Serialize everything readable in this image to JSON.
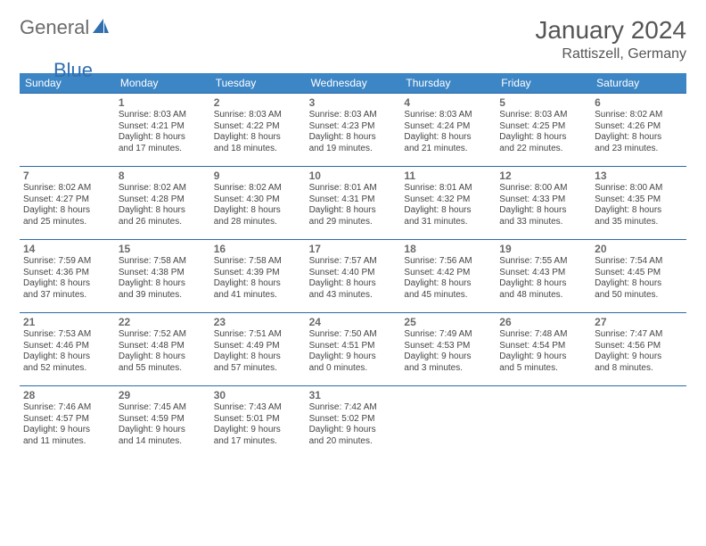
{
  "logo": {
    "general": "General",
    "blue": "Blue"
  },
  "title": "January 2024",
  "location": "Rattiszell, Germany",
  "colors": {
    "header_bg": "#3d86c6",
    "header_text": "#ffffff",
    "row_border": "#2b6aa8",
    "text": "#444444",
    "daynum": "#6a6a6a",
    "title_text": "#555555",
    "logo_blue": "#2f6fb0",
    "logo_gray": "#6b6b6b"
  },
  "dow": [
    "Sunday",
    "Monday",
    "Tuesday",
    "Wednesday",
    "Thursday",
    "Friday",
    "Saturday"
  ],
  "leading_blanks": 1,
  "trailing_blanks": 3,
  "days": [
    {
      "n": "1",
      "sunrise": "Sunrise: 8:03 AM",
      "sunset": "Sunset: 4:21 PM",
      "d1": "Daylight: 8 hours",
      "d2": "and 17 minutes."
    },
    {
      "n": "2",
      "sunrise": "Sunrise: 8:03 AM",
      "sunset": "Sunset: 4:22 PM",
      "d1": "Daylight: 8 hours",
      "d2": "and 18 minutes."
    },
    {
      "n": "3",
      "sunrise": "Sunrise: 8:03 AM",
      "sunset": "Sunset: 4:23 PM",
      "d1": "Daylight: 8 hours",
      "d2": "and 19 minutes."
    },
    {
      "n": "4",
      "sunrise": "Sunrise: 8:03 AM",
      "sunset": "Sunset: 4:24 PM",
      "d1": "Daylight: 8 hours",
      "d2": "and 21 minutes."
    },
    {
      "n": "5",
      "sunrise": "Sunrise: 8:03 AM",
      "sunset": "Sunset: 4:25 PM",
      "d1": "Daylight: 8 hours",
      "d2": "and 22 minutes."
    },
    {
      "n": "6",
      "sunrise": "Sunrise: 8:02 AM",
      "sunset": "Sunset: 4:26 PM",
      "d1": "Daylight: 8 hours",
      "d2": "and 23 minutes."
    },
    {
      "n": "7",
      "sunrise": "Sunrise: 8:02 AM",
      "sunset": "Sunset: 4:27 PM",
      "d1": "Daylight: 8 hours",
      "d2": "and 25 minutes."
    },
    {
      "n": "8",
      "sunrise": "Sunrise: 8:02 AM",
      "sunset": "Sunset: 4:28 PM",
      "d1": "Daylight: 8 hours",
      "d2": "and 26 minutes."
    },
    {
      "n": "9",
      "sunrise": "Sunrise: 8:02 AM",
      "sunset": "Sunset: 4:30 PM",
      "d1": "Daylight: 8 hours",
      "d2": "and 28 minutes."
    },
    {
      "n": "10",
      "sunrise": "Sunrise: 8:01 AM",
      "sunset": "Sunset: 4:31 PM",
      "d1": "Daylight: 8 hours",
      "d2": "and 29 minutes."
    },
    {
      "n": "11",
      "sunrise": "Sunrise: 8:01 AM",
      "sunset": "Sunset: 4:32 PM",
      "d1": "Daylight: 8 hours",
      "d2": "and 31 minutes."
    },
    {
      "n": "12",
      "sunrise": "Sunrise: 8:00 AM",
      "sunset": "Sunset: 4:33 PM",
      "d1": "Daylight: 8 hours",
      "d2": "and 33 minutes."
    },
    {
      "n": "13",
      "sunrise": "Sunrise: 8:00 AM",
      "sunset": "Sunset: 4:35 PM",
      "d1": "Daylight: 8 hours",
      "d2": "and 35 minutes."
    },
    {
      "n": "14",
      "sunrise": "Sunrise: 7:59 AM",
      "sunset": "Sunset: 4:36 PM",
      "d1": "Daylight: 8 hours",
      "d2": "and 37 minutes."
    },
    {
      "n": "15",
      "sunrise": "Sunrise: 7:58 AM",
      "sunset": "Sunset: 4:38 PM",
      "d1": "Daylight: 8 hours",
      "d2": "and 39 minutes."
    },
    {
      "n": "16",
      "sunrise": "Sunrise: 7:58 AM",
      "sunset": "Sunset: 4:39 PM",
      "d1": "Daylight: 8 hours",
      "d2": "and 41 minutes."
    },
    {
      "n": "17",
      "sunrise": "Sunrise: 7:57 AM",
      "sunset": "Sunset: 4:40 PM",
      "d1": "Daylight: 8 hours",
      "d2": "and 43 minutes."
    },
    {
      "n": "18",
      "sunrise": "Sunrise: 7:56 AM",
      "sunset": "Sunset: 4:42 PM",
      "d1": "Daylight: 8 hours",
      "d2": "and 45 minutes."
    },
    {
      "n": "19",
      "sunrise": "Sunrise: 7:55 AM",
      "sunset": "Sunset: 4:43 PM",
      "d1": "Daylight: 8 hours",
      "d2": "and 48 minutes."
    },
    {
      "n": "20",
      "sunrise": "Sunrise: 7:54 AM",
      "sunset": "Sunset: 4:45 PM",
      "d1": "Daylight: 8 hours",
      "d2": "and 50 minutes."
    },
    {
      "n": "21",
      "sunrise": "Sunrise: 7:53 AM",
      "sunset": "Sunset: 4:46 PM",
      "d1": "Daylight: 8 hours",
      "d2": "and 52 minutes."
    },
    {
      "n": "22",
      "sunrise": "Sunrise: 7:52 AM",
      "sunset": "Sunset: 4:48 PM",
      "d1": "Daylight: 8 hours",
      "d2": "and 55 minutes."
    },
    {
      "n": "23",
      "sunrise": "Sunrise: 7:51 AM",
      "sunset": "Sunset: 4:49 PM",
      "d1": "Daylight: 8 hours",
      "d2": "and 57 minutes."
    },
    {
      "n": "24",
      "sunrise": "Sunrise: 7:50 AM",
      "sunset": "Sunset: 4:51 PM",
      "d1": "Daylight: 9 hours",
      "d2": "and 0 minutes."
    },
    {
      "n": "25",
      "sunrise": "Sunrise: 7:49 AM",
      "sunset": "Sunset: 4:53 PM",
      "d1": "Daylight: 9 hours",
      "d2": "and 3 minutes."
    },
    {
      "n": "26",
      "sunrise": "Sunrise: 7:48 AM",
      "sunset": "Sunset: 4:54 PM",
      "d1": "Daylight: 9 hours",
      "d2": "and 5 minutes."
    },
    {
      "n": "27",
      "sunrise": "Sunrise: 7:47 AM",
      "sunset": "Sunset: 4:56 PM",
      "d1": "Daylight: 9 hours",
      "d2": "and 8 minutes."
    },
    {
      "n": "28",
      "sunrise": "Sunrise: 7:46 AM",
      "sunset": "Sunset: 4:57 PM",
      "d1": "Daylight: 9 hours",
      "d2": "and 11 minutes."
    },
    {
      "n": "29",
      "sunrise": "Sunrise: 7:45 AM",
      "sunset": "Sunset: 4:59 PM",
      "d1": "Daylight: 9 hours",
      "d2": "and 14 minutes."
    },
    {
      "n": "30",
      "sunrise": "Sunrise: 7:43 AM",
      "sunset": "Sunset: 5:01 PM",
      "d1": "Daylight: 9 hours",
      "d2": "and 17 minutes."
    },
    {
      "n": "31",
      "sunrise": "Sunrise: 7:42 AM",
      "sunset": "Sunset: 5:02 PM",
      "d1": "Daylight: 9 hours",
      "d2": "and 20 minutes."
    }
  ]
}
